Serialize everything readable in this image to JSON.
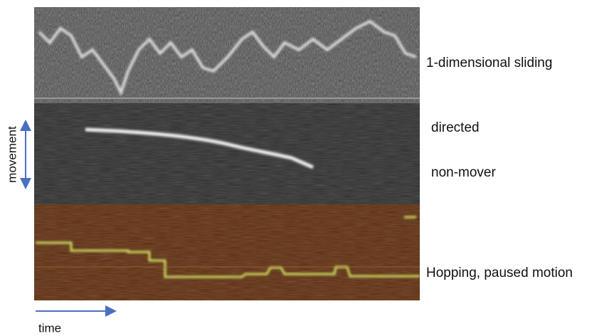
{
  "labels": {
    "sliding": "1-dimensional sliding",
    "directed": "directed",
    "non_mover": "non-mover",
    "hopping": "Hopping, paused motion",
    "movement": "movement",
    "time": "time"
  }
}
